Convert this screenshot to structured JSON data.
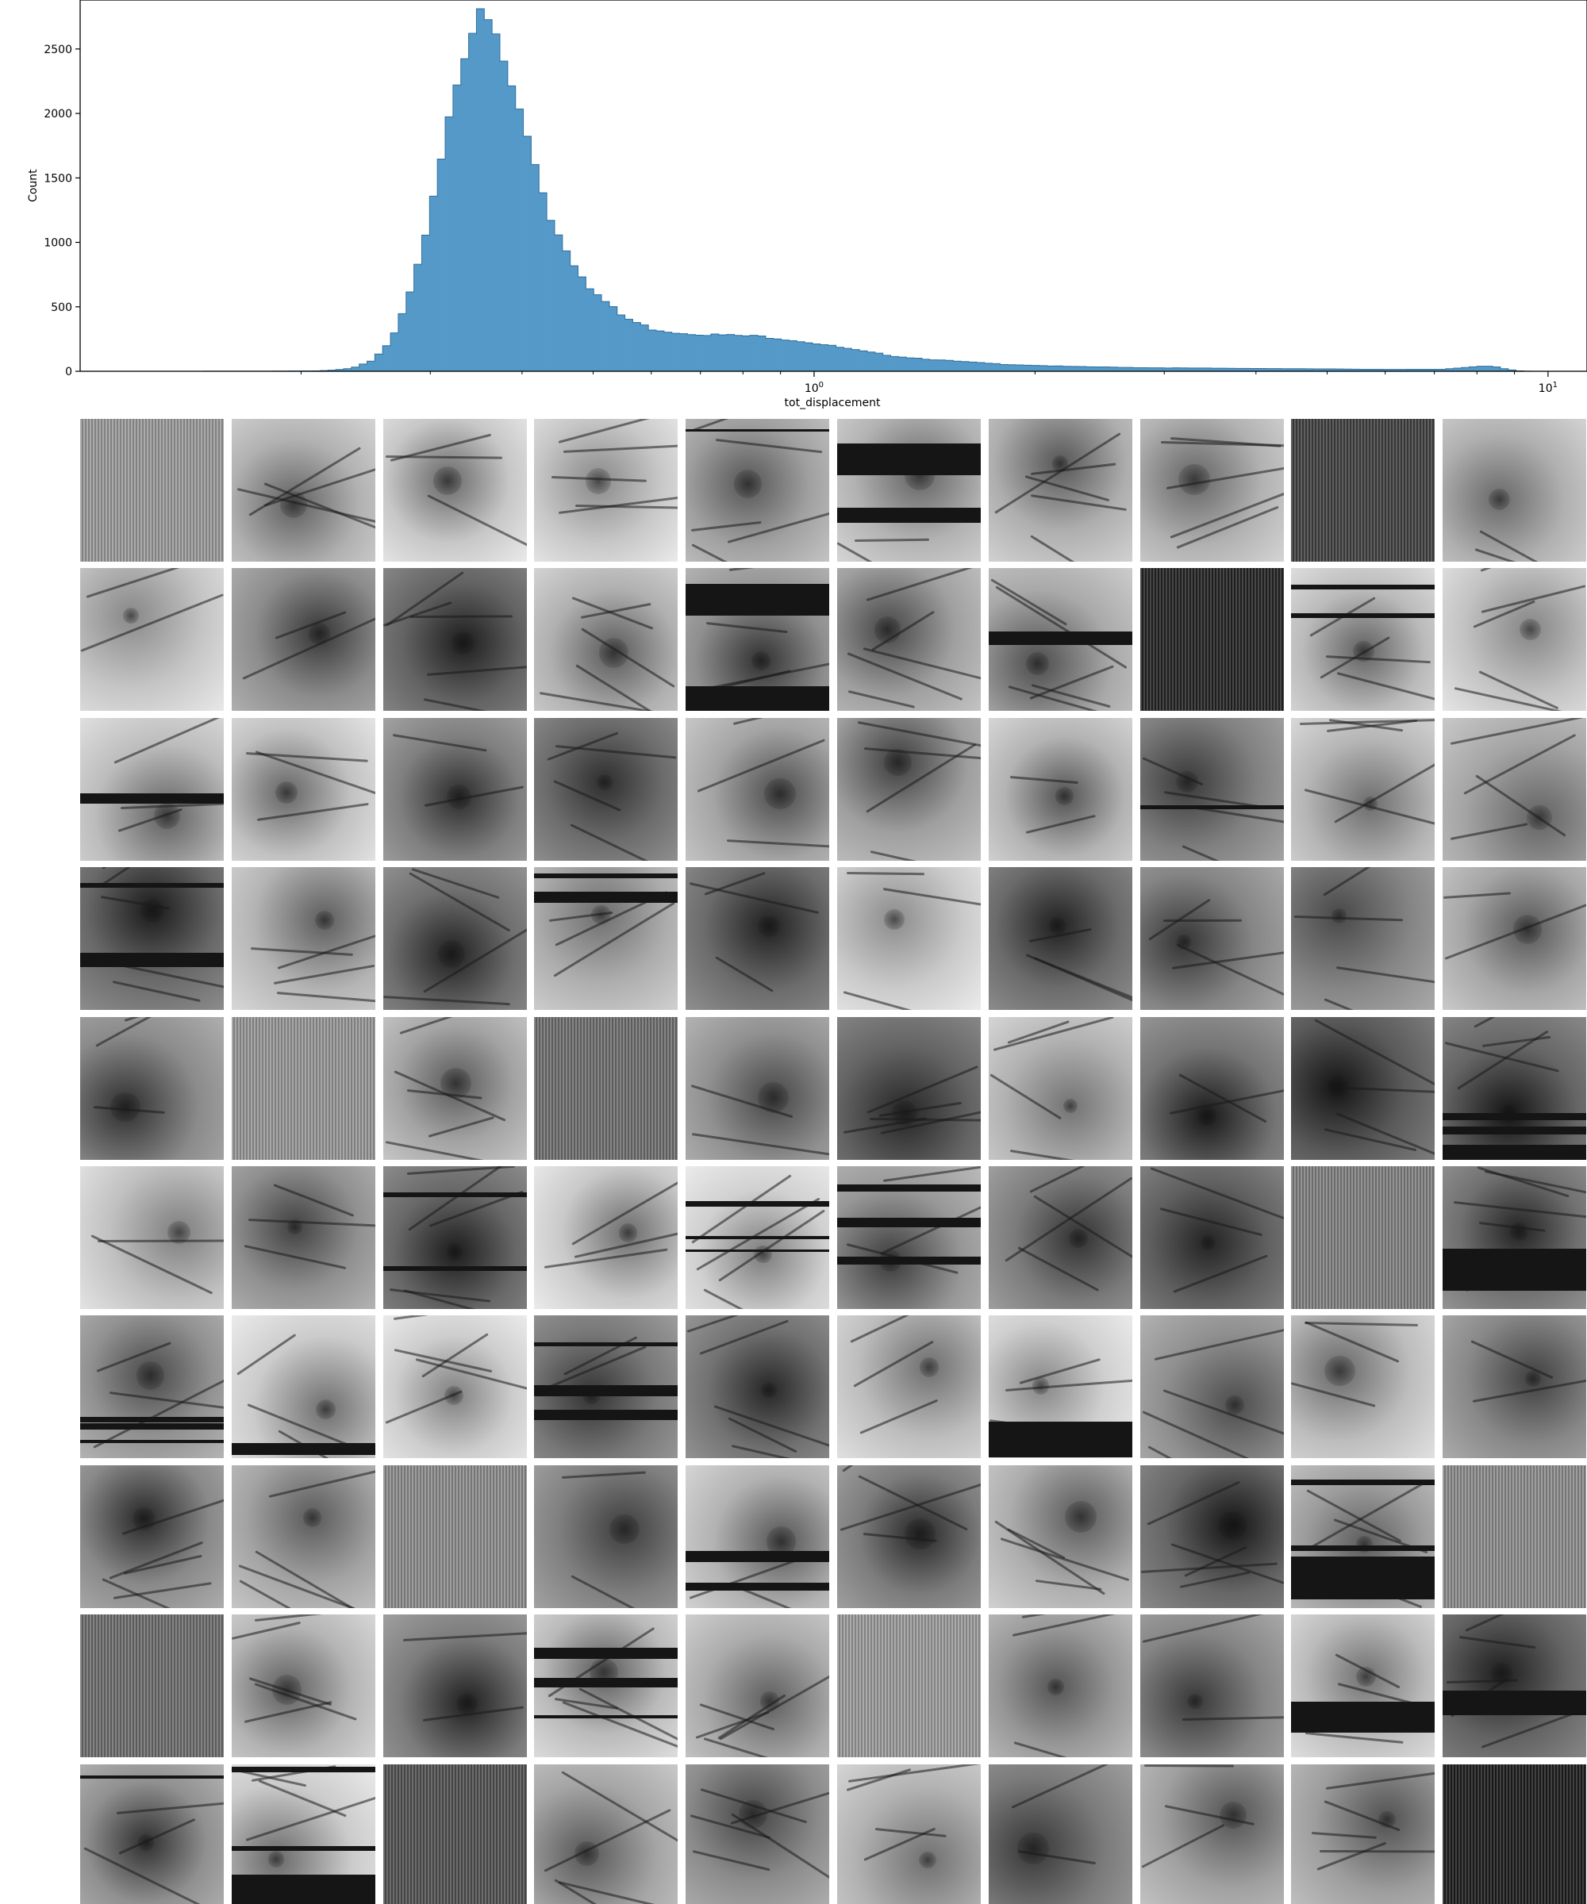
{
  "chart_data": {
    "type": "bar",
    "xlabel": "tot_displacement",
    "ylabel": "Count",
    "x_scale": "log",
    "xlim": [
      0.1,
      11.3
    ],
    "ylim": [
      0,
      2880
    ],
    "yticks": [
      {
        "value": 0,
        "label": "0"
      },
      {
        "value": 500,
        "label": "500"
      },
      {
        "value": 1000,
        "label": "1000"
      },
      {
        "value": 1500,
        "label": "1500"
      },
      {
        "value": 2000,
        "label": "2000"
      },
      {
        "value": 2500,
        "label": "2500"
      }
    ],
    "xticks_major": [
      {
        "value": 1,
        "base": "10",
        "exp": "0"
      },
      {
        "value": 10,
        "base": "10",
        "exp": "1"
      }
    ],
    "xticks_minor": [
      0.2,
      0.3,
      0.4,
      0.5,
      0.6,
      0.7,
      0.8,
      0.9,
      2,
      3,
      4,
      5,
      6,
      7,
      8,
      9
    ],
    "bar_color": "#5499c7",
    "profile": [
      [
        0.13,
        0
      ],
      [
        0.18,
        1
      ],
      [
        0.21,
        3
      ],
      [
        0.22,
        8
      ],
      [
        0.235,
        25
      ],
      [
        0.25,
        80
      ],
      [
        0.265,
        230
      ],
      [
        0.28,
        550
      ],
      [
        0.29,
        850
      ],
      [
        0.3,
        1250
      ],
      [
        0.31,
        1650
      ],
      [
        0.32,
        2050
      ],
      [
        0.33,
        2400
      ],
      [
        0.34,
        2620
      ],
      [
        0.35,
        2740
      ],
      [
        0.36,
        2700
      ],
      [
        0.37,
        2550
      ],
      [
        0.38,
        2350
      ],
      [
        0.4,
        1950
      ],
      [
        0.42,
        1550
      ],
      [
        0.44,
        1150
      ],
      [
        0.47,
        850
      ],
      [
        0.5,
        620
      ],
      [
        0.55,
        420
      ],
      [
        0.6,
        330
      ],
      [
        0.65,
        300
      ],
      [
        0.72,
        285
      ],
      [
        0.8,
        275
      ],
      [
        0.85,
        270
      ],
      [
        0.9,
        255
      ],
      [
        1.0,
        220
      ],
      [
        1.15,
        160
      ],
      [
        1.3,
        115
      ],
      [
        1.5,
        85
      ],
      [
        1.8,
        55
      ],
      [
        2.2,
        38
      ],
      [
        2.8,
        28
      ],
      [
        3.5,
        24
      ],
      [
        4.5,
        20
      ],
      [
        6.0,
        15
      ],
      [
        7.2,
        15
      ],
      [
        7.8,
        32
      ],
      [
        8.2,
        42
      ],
      [
        8.5,
        35
      ],
      [
        8.8,
        15
      ],
      [
        9.2,
        2
      ],
      [
        9.5,
        0
      ]
    ],
    "bins": {
      "min": 0.115,
      "max": 9.5,
      "count": 180
    }
  },
  "image_grid": {
    "rows": 10,
    "cols": 10
  }
}
